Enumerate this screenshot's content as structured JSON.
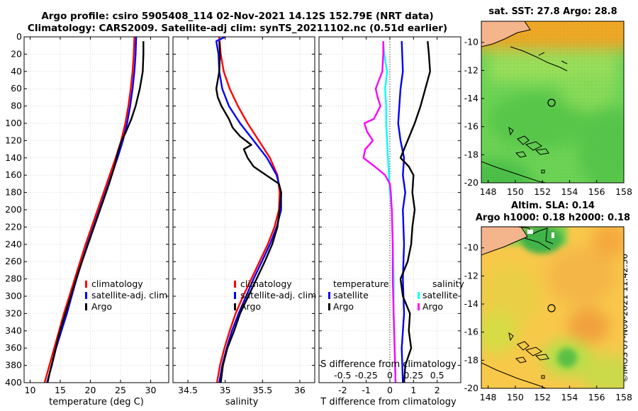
{
  "title": {
    "line1": "Argo profile: csiro 5905408_114 02-Nov-2021 14.12S 152.79E (NRT data)",
    "line2": "Climatology: CARS2009. Satellite-adj clim: synTS_20211102.nc (0.51d earlier)"
  },
  "credit": "©IMOS 07-Nov-2021 11:42:36",
  "colors": {
    "climatology": "#ff0000",
    "satellite": "#0000ff",
    "argo": "#000000",
    "sat_diff": "#00ffff",
    "magenta": "#ff00ff"
  },
  "chart_data": [
    {
      "type": "line",
      "panel": "temperature",
      "xlabel": "temperature (deg C)",
      "xlim": [
        9,
        33
      ],
      "ylim": [
        0,
        400
      ],
      "xticks": [
        10,
        15,
        20,
        25,
        30
      ],
      "yticks": [
        0,
        20,
        40,
        60,
        80,
        100,
        120,
        140,
        160,
        180,
        200,
        220,
        240,
        260,
        280,
        300,
        320,
        340,
        360,
        380,
        400
      ],
      "legend": [
        "climatology",
        "satellite-adj. clim",
        "Argo"
      ],
      "series": [
        {
          "name": "climatology",
          "color": "#ff0000",
          "depth": [
            0,
            20,
            40,
            60,
            80,
            100,
            120,
            140,
            160,
            180,
            200,
            220,
            240,
            260,
            280,
            300,
            320,
            340,
            360,
            380,
            400
          ],
          "values": [
            27.3,
            27.2,
            27.0,
            26.7,
            26.3,
            25.8,
            25.1,
            24.2,
            23.2,
            22.2,
            21.2,
            20.2,
            19.2,
            18.3,
            17.4,
            16.5,
            15.6,
            14.8,
            14.0,
            13.2,
            12.4
          ]
        },
        {
          "name": "satellite-adj. clim",
          "color": "#0000ff",
          "depth": [
            0,
            20,
            40,
            60,
            80,
            100,
            120,
            140,
            160,
            180,
            200,
            220,
            240,
            260,
            280,
            300,
            320,
            340,
            360,
            380,
            400
          ],
          "values": [
            27.6,
            27.5,
            27.3,
            27.0,
            26.6,
            26.1,
            25.4,
            24.5,
            23.5,
            22.5,
            21.5,
            20.5,
            19.5,
            18.6,
            17.7,
            16.9,
            16.1,
            15.2,
            14.3,
            13.6,
            12.8
          ]
        },
        {
          "name": "Argo",
          "color": "#000000",
          "depth": [
            5,
            20,
            40,
            60,
            80,
            95,
            110,
            120,
            135,
            150,
            170,
            190,
            210,
            230,
            250,
            270,
            290,
            310,
            330,
            350,
            370,
            390,
            400
          ],
          "values": [
            28.8,
            28.8,
            28.7,
            28.2,
            27.5,
            26.8,
            25.9,
            25.2,
            24.5,
            24.0,
            23.1,
            22.1,
            21.1,
            20.1,
            19.1,
            18.1,
            17.2,
            16.3,
            15.4,
            14.6,
            13.9,
            13.2,
            12.9
          ]
        }
      ]
    },
    {
      "type": "line",
      "panel": "salinity",
      "xlabel": "salinity",
      "xlim": [
        34.3,
        36.2
      ],
      "ylim": [
        0,
        400
      ],
      "xticks": [
        34.5,
        35,
        35.5,
        36
      ],
      "legend": [
        "climatology",
        "satellite-adj. clim",
        "Argo"
      ],
      "series": [
        {
          "name": "climatology",
          "color": "#ff0000",
          "depth": [
            0,
            20,
            40,
            60,
            80,
            100,
            120,
            140,
            160,
            180,
            200,
            220,
            240,
            260,
            280,
            300,
            320,
            340,
            360,
            380,
            400
          ],
          "values": [
            34.92,
            34.94,
            34.98,
            35.06,
            35.17,
            35.3,
            35.45,
            35.6,
            35.7,
            35.73,
            35.72,
            35.66,
            35.57,
            35.46,
            35.35,
            35.24,
            35.14,
            35.06,
            34.99,
            34.93,
            34.89
          ]
        },
        {
          "name": "satellite-adj. clim",
          "color": "#0000ff",
          "depth": [
            0,
            5,
            20,
            40,
            60,
            80,
            100,
            120,
            140,
            160,
            180,
            200,
            220,
            240,
            260,
            280,
            300,
            320,
            340,
            360,
            380,
            400
          ],
          "values": [
            35.0,
            34.88,
            34.91,
            34.92,
            34.96,
            35.05,
            35.2,
            35.38,
            35.56,
            35.69,
            35.75,
            35.75,
            35.69,
            35.6,
            35.49,
            35.38,
            35.28,
            35.18,
            35.09,
            35.02,
            34.96,
            34.92
          ]
        },
        {
          "name": "Argo",
          "color": "#000000",
          "depth": [
            5,
            20,
            40,
            60,
            70,
            80,
            95,
            105,
            115,
            125,
            130,
            140,
            150,
            160,
            170,
            180,
            200,
            220,
            240,
            260,
            280,
            300,
            320,
            340,
            360,
            380,
            400
          ],
          "values": [
            34.92,
            34.93,
            34.92,
            34.88,
            34.9,
            34.95,
            35.05,
            35.1,
            35.2,
            35.35,
            35.25,
            35.3,
            35.38,
            35.55,
            35.72,
            35.75,
            35.73,
            35.7,
            35.63,
            35.53,
            35.42,
            35.31,
            35.2,
            35.12,
            35.03,
            34.97,
            34.94
          ]
        }
      ]
    },
    {
      "type": "line",
      "panel": "difference",
      "xlabel": "T difference from climatology",
      "xlabel_top": "S difference from climatology",
      "xlim": [
        -3,
        3
      ],
      "ylim": [
        0,
        400
      ],
      "xticks": [
        -2,
        -1,
        0,
        1,
        2
      ],
      "xticks_top": [
        -0.5,
        -0.25,
        0,
        0.25,
        0.5
      ],
      "xticklabels_top": [
        "-0.5",
        "-0.25",
        "0",
        "0.25",
        "0.5"
      ],
      "legend_t": {
        "heading": "temperature",
        "items": [
          "satellite",
          "Argo"
        ]
      },
      "legend_s": {
        "heading": "salinity",
        "items": [
          "satellite",
          "Argo"
        ]
      },
      "series": [
        {
          "name": "T satellite",
          "color": "#0000ff",
          "depth": [
            5,
            40,
            60,
            80,
            100,
            120,
            140,
            160,
            180,
            200,
            240,
            280,
            320,
            360,
            400
          ],
          "values": [
            0.5,
            0.55,
            0.45,
            0.4,
            0.35,
            0.45,
            0.6,
            0.55,
            0.65,
            0.55,
            0.6,
            0.55,
            0.6,
            0.5,
            0.55
          ]
        },
        {
          "name": "T Argo",
          "color": "#000000",
          "depth": [
            5,
            20,
            40,
            60,
            80,
            100,
            120,
            140,
            150,
            160,
            180,
            200,
            220,
            240,
            260,
            280,
            300,
            320,
            340,
            360,
            380,
            400
          ],
          "values": [
            1.6,
            1.65,
            1.7,
            1.5,
            1.3,
            1.05,
            0.75,
            0.45,
            0.8,
            1.0,
            0.95,
            1.05,
            0.95,
            0.9,
            0.75,
            0.45,
            0.55,
            0.85,
            0.8,
            0.9,
            0.65,
            0.6
          ]
        },
        {
          "name": "S satellite",
          "color": "#00ffff",
          "depth": [
            5,
            20,
            40,
            60,
            80,
            100,
            120,
            140,
            160,
            180,
            200,
            240,
            280,
            320,
            360,
            400
          ],
          "values": [
            -0.07,
            -0.06,
            -0.03,
            -0.05,
            -0.04,
            -0.04,
            -0.03,
            -0.02,
            -0.01,
            0.0,
            0.02,
            0.03,
            0.04,
            0.04,
            0.05,
            0.06
          ]
        },
        {
          "name": "S Argo",
          "color": "#ff00ff",
          "depth": [
            5,
            20,
            40,
            60,
            70,
            80,
            95,
            100,
            110,
            120,
            130,
            140,
            150,
            160,
            170,
            180,
            200,
            240,
            280,
            320,
            360,
            400
          ],
          "values": [
            -0.07,
            -0.07,
            -0.08,
            -0.15,
            -0.13,
            -0.1,
            -0.17,
            -0.27,
            -0.24,
            -0.18,
            -0.26,
            -0.28,
            -0.16,
            -0.05,
            0.0,
            0.01,
            0.02,
            0.03,
            0.03,
            0.04,
            0.05,
            0.06
          ]
        }
      ]
    },
    {
      "type": "heatmap",
      "panel": "sst-map",
      "title": "sat. SST: 27.8 Argo: 28.8",
      "xlim": [
        147.5,
        158
      ],
      "ylim": [
        -20,
        -8.5
      ],
      "xticks": [
        148,
        150,
        152,
        154,
        156,
        158
      ],
      "yticks": [
        -10,
        -12,
        -14,
        -16,
        -18,
        -20
      ],
      "argo_position": {
        "lon": 152.79,
        "lat": -14.12
      }
    },
    {
      "type": "heatmap",
      "panel": "sla-map",
      "title_line1": "Altim. SLA: 0.14",
      "title_line2": "Argo h1000: 0.18 h2000: 0.18",
      "xlim": [
        147.5,
        158
      ],
      "ylim": [
        -20,
        -8.5
      ],
      "xticks": [
        148,
        150,
        152,
        154,
        156,
        158
      ],
      "yticks": [
        -10,
        -12,
        -14,
        -16,
        -18,
        -20
      ],
      "argo_position": {
        "lon": 152.79,
        "lat": -14.12
      }
    }
  ]
}
